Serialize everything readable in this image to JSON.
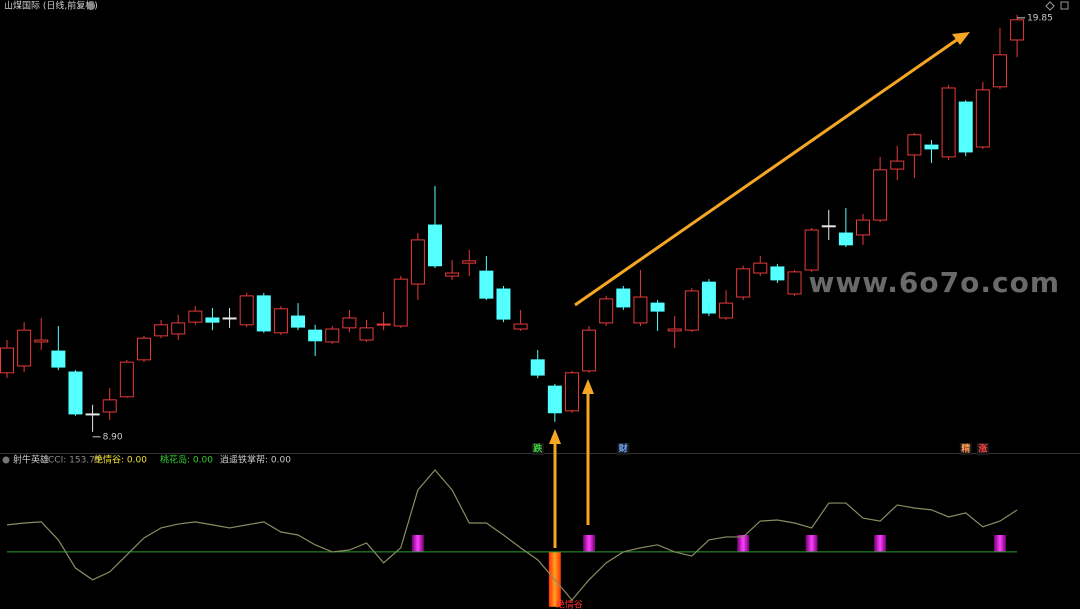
{
  "chart_data": [
    {
      "type": "candlestick",
      "title": "山煤国际 (日线,前复权)",
      "watermark": "www.6o7o.com",
      "up_color": "#e83a3a",
      "down_color": "#54ffff",
      "flat_color": "#e8e8e8",
      "ylim": [
        8.37,
        20.24
      ],
      "open": [
        10.45,
        10.63,
        11.26,
        11.02,
        10.47,
        9.37,
        9.42,
        9.82,
        10.79,
        11.42,
        11.47,
        11.78,
        11.89,
        11.89,
        11.71,
        12.47,
        11.5,
        11.94,
        11.57,
        11.26,
        11.63,
        11.31,
        11.71,
        11.68,
        12.78,
        14.33,
        12.99,
        13.33,
        13.12,
        12.65,
        11.6,
        10.79,
        10.1,
        9.45,
        10.5,
        11.76,
        12.65,
        11.76,
        12.28,
        11.55,
        11.57,
        12.83,
        11.89,
        12.44,
        13.07,
        13.23,
        12.52,
        13.15,
        14.31,
        14.12,
        14.07,
        14.46,
        15.8,
        16.17,
        16.43,
        16.12,
        17.56,
        16.38,
        17.96,
        19.19
      ],
      "high": [
        11.31,
        11.78,
        11.89,
        11.68,
        10.52,
        9.61,
        10.05,
        10.79,
        11.42,
        11.84,
        11.97,
        12.2,
        12.15,
        12.15,
        12.55,
        12.55,
        12.2,
        12.28,
        11.71,
        11.68,
        12.1,
        11.84,
        12.05,
        12.99,
        14.12,
        15.36,
        13.41,
        13.68,
        13.52,
        12.73,
        12.1,
        11.05,
        10.16,
        10.5,
        11.68,
        12.47,
        12.73,
        13.15,
        12.36,
        11.94,
        12.68,
        12.91,
        12.62,
        13.26,
        13.52,
        13.31,
        13.15,
        14.25,
        14.73,
        14.78,
        14.62,
        16.12,
        16.41,
        16.75,
        16.56,
        18.01,
        17.61,
        18.09,
        19.51,
        19.85
      ],
      "low": [
        10.31,
        10.47,
        11.05,
        10.52,
        9.32,
        8.9,
        9.21,
        9.79,
        10.73,
        11.36,
        11.31,
        11.71,
        11.57,
        11.63,
        11.65,
        11.5,
        11.44,
        11.57,
        10.89,
        11.21,
        11.52,
        11.26,
        11.57,
        11.63,
        12.36,
        13.2,
        12.89,
        12.99,
        12.36,
        11.78,
        11.55,
        10.31,
        9.16,
        9.4,
        10.45,
        11.68,
        12.1,
        11.68,
        11.55,
        11.1,
        11.52,
        11.94,
        11.84,
        12.36,
        12.99,
        12.81,
        12.47,
        13.1,
        13.94,
        13.75,
        13.81,
        14.41,
        15.51,
        15.57,
        15.96,
        16.04,
        16.14,
        16.33,
        17.9,
        18.74
      ],
      "close": [
        11.1,
        11.57,
        11.31,
        10.6,
        9.37,
        9.37,
        9.74,
        10.73,
        11.36,
        11.71,
        11.76,
        12.07,
        11.78,
        11.89,
        12.47,
        11.55,
        12.13,
        11.65,
        11.29,
        11.6,
        11.89,
        11.63,
        11.73,
        12.91,
        13.94,
        13.26,
        13.07,
        13.39,
        12.41,
        11.86,
        11.73,
        10.39,
        9.4,
        10.45,
        11.57,
        12.39,
        12.18,
        12.44,
        12.07,
        11.6,
        12.6,
        12.02,
        12.28,
        13.18,
        13.33,
        12.89,
        13.1,
        14.2,
        14.31,
        13.81,
        14.46,
        15.78,
        16.01,
        16.7,
        16.33,
        17.93,
        16.25,
        17.88,
        18.8,
        19.72
      ],
      "annotations": [
        {
          "label": "19.85",
          "value": 19.85,
          "index": 59
        },
        {
          "label": "8.90",
          "value": 8.9,
          "index": 5
        }
      ],
      "markers": [
        {
          "label": "跌",
          "index": 31,
          "color": "#3ad23a"
        },
        {
          "label": "财",
          "index": 36,
          "color": "#6aa8ff"
        },
        {
          "label": "精",
          "index": 56,
          "color": "#ff9a50"
        },
        {
          "label": "涨",
          "index": 57,
          "color": "#ff4040"
        }
      ]
    },
    {
      "type": "line",
      "indicator_name": "射牛英雄",
      "legend": [
        {
          "text": "CCI: 153.75",
          "color": "#8a8a8a"
        },
        {
          "text": "绝情谷: 0.00",
          "color": "#f0e030"
        },
        {
          "text": "桃花岛: 0.00",
          "color": "#30d030"
        },
        {
          "text": "逍遥铁掌帮: 0.00",
          "color": "#c8c8c8"
        }
      ],
      "ylim": [
        -209,
        355
      ],
      "series": [
        {
          "name": "CCI",
          "color": "#8c8c62",
          "values": [
            99,
            106,
            110,
            44,
            -59,
            -102,
            -73,
            -11,
            51,
            88,
            102,
            110,
            99,
            88,
            99,
            110,
            73,
            62,
            26,
            0,
            7,
            33,
            -40,
            15,
            227,
            300,
            227,
            106,
            106,
            62,
            15,
            -29,
            -102,
            -176,
            -102,
            -40,
            0,
            15,
            26,
            0,
            -15,
            44,
            55,
            55,
            113,
            117,
            106,
            88,
            179,
            179,
            124,
            113,
            172,
            161,
            154,
            128,
            143,
            92,
            113,
            153.75
          ]
        }
      ],
      "signal_bars": [
        {
          "index": 24,
          "value": 62,
          "color": "#d020d0"
        },
        {
          "index": 34,
          "value": 62,
          "color": "#d020d0"
        },
        {
          "index": 43,
          "value": 62,
          "color": "#d020d0"
        },
        {
          "index": 47,
          "value": 62,
          "color": "#d020d0"
        },
        {
          "index": 51,
          "value": 62,
          "color": "#d020d0"
        },
        {
          "index": 58,
          "value": 62,
          "color": "#d020d0"
        },
        {
          "index": 32,
          "value": -201,
          "color": "#ff5a10",
          "label": "绝情谷"
        }
      ],
      "zero_color": "#2ea02e"
    }
  ]
}
